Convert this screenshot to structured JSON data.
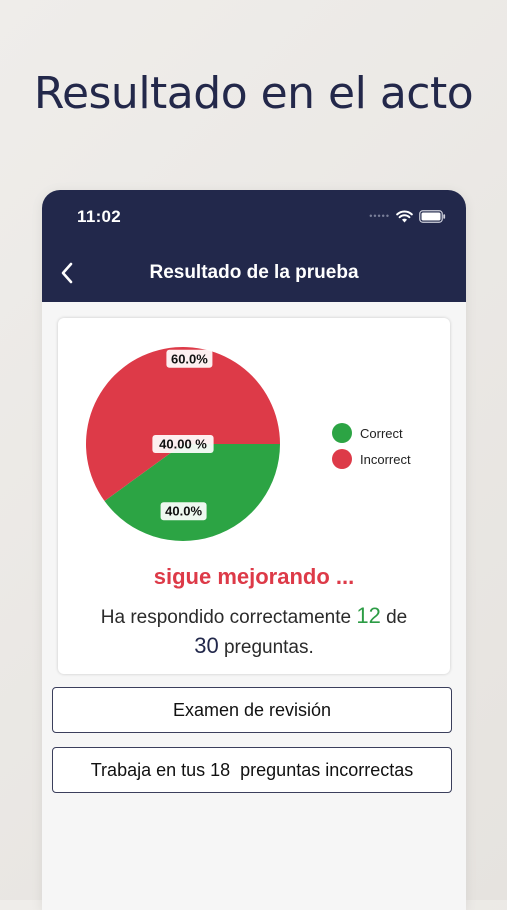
{
  "headline": "Resultado en el acto",
  "status_bar": {
    "time": "11:02",
    "icons": [
      "signal-dots-icon",
      "wifi-icon",
      "battery-icon"
    ]
  },
  "header": {
    "back_icon": "chevron-left-icon",
    "title": "Resultado de la prueba"
  },
  "chart_data": {
    "type": "pie",
    "slices": [
      {
        "label": "Correct",
        "value": 40.0,
        "color": "#2ca444"
      },
      {
        "label": "Incorrect",
        "value": 60.0,
        "color": "#dd3a48"
      }
    ],
    "data_labels": [
      "60.0%",
      "40.00 %",
      "40.0%"
    ],
    "legend": [
      "Correct",
      "Incorrect"
    ],
    "legend_placement": "right"
  },
  "result": {
    "motivation": "sigue mejorando ...",
    "summary_part1": "Ha respondido correctamente ",
    "correct_count": "12",
    "summary_part2": " de",
    "total_count": "30",
    "summary_part3": " preguntas."
  },
  "buttons": {
    "review_label": "Examen de revisión",
    "incorrect_label": "Trabaja en tus 18  preguntas incorrectas"
  },
  "colors": {
    "navbar": "#22284b",
    "correct": "#2ca444",
    "incorrect": "#dd3a48",
    "background": "#ebe8e4"
  }
}
